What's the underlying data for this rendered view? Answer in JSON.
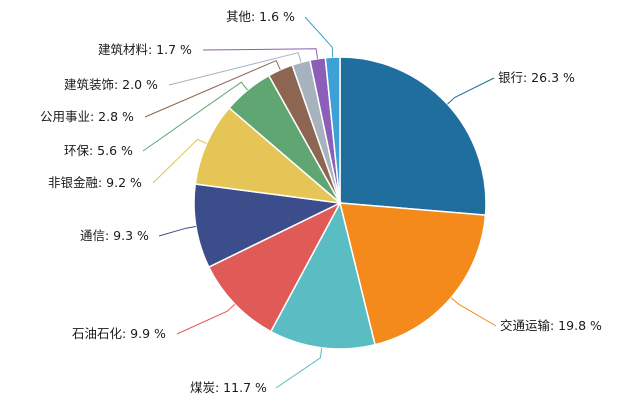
{
  "chart_data": {
    "type": "pie",
    "title": "",
    "start": "12 o'clock",
    "direction": "clockwise",
    "slices": [
      {
        "label": "银行",
        "value": 26.3,
        "text": "26.3 %",
        "color": "#1f6e9e"
      },
      {
        "label": "交通运输",
        "value": 19.8,
        "text": "19.8 %",
        "color": "#f38a1b"
      },
      {
        "label": "煤炭",
        "value": 11.7,
        "text": "11.7 %",
        "color": "#5bbdc4"
      },
      {
        "label": "石油石化",
        "value": 9.9,
        "text": "9.9 %",
        "color": "#e05a57"
      },
      {
        "label": "通信",
        "value": 9.3,
        "text": "9.3 %",
        "color": "#3c4d8b"
      },
      {
        "label": "非银金融",
        "value": 9.2,
        "text": "9.2 %",
        "color": "#e4c555"
      },
      {
        "label": "环保",
        "value": 5.6,
        "text": "5.6 %",
        "color": "#5fa672"
      },
      {
        "label": "公用事业",
        "value": 2.8,
        "text": "2.8 %",
        "color": "#8c6650"
      },
      {
        "label": "建筑装饰",
        "value": 2.0,
        "text": "2.0 %",
        "color": "#a6b2be"
      },
      {
        "label": "建筑材料",
        "value": 1.7,
        "text": "1.7 %",
        "color": "#8b5fb8"
      },
      {
        "label": "其他",
        "value": 1.6,
        "text": "1.6 %",
        "color": "#3da0d6"
      }
    ]
  }
}
